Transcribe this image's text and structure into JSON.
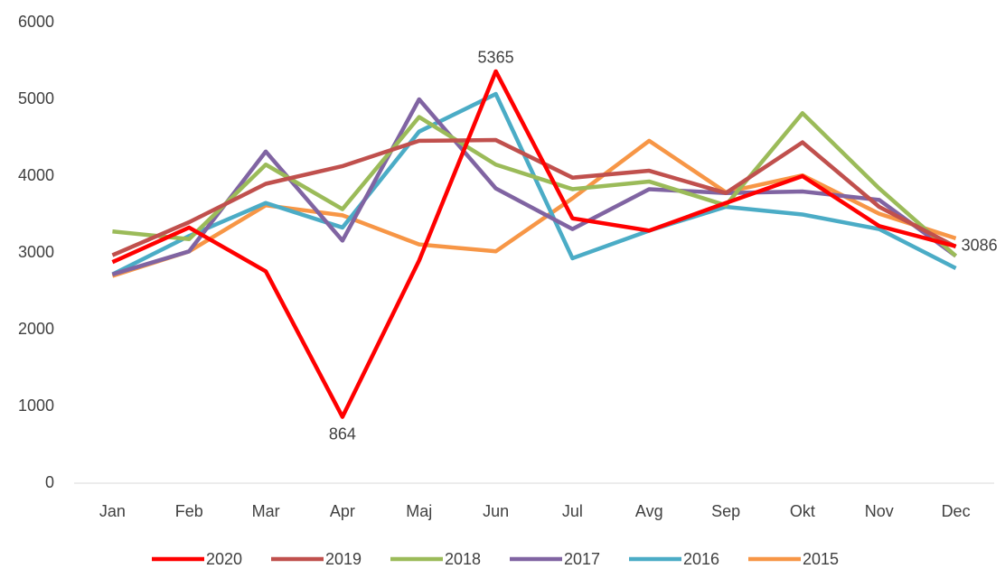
{
  "chart_data": {
    "type": "line",
    "categories": [
      "Jan",
      "Feb",
      "Mar",
      "Apr",
      "Maj",
      "Jun",
      "Jul",
      "Avg",
      "Sep",
      "Okt",
      "Nov",
      "Dec"
    ],
    "series": [
      {
        "name": "2020",
        "color": "#ff0000",
        "values": [
          2880,
          3330,
          2760,
          864,
          2900,
          5365,
          3450,
          3290,
          3650,
          4000,
          3350,
          3086
        ],
        "value_labels": [
          null,
          null,
          null,
          "864",
          null,
          "5365",
          null,
          null,
          null,
          null,
          null,
          "3086"
        ]
      },
      {
        "name": "2019",
        "color": "#c0504d",
        "values": [
          2970,
          3400,
          3900,
          4130,
          4460,
          4470,
          3980,
          4070,
          3780,
          4440,
          3600,
          3080
        ]
      },
      {
        "name": "2018",
        "color": "#9bbb59",
        "values": [
          3280,
          3180,
          4150,
          3570,
          4770,
          4150,
          3830,
          3930,
          3620,
          4820,
          3840,
          2960
        ]
      },
      {
        "name": "2017",
        "color": "#8064a2",
        "values": [
          2720,
          3020,
          4320,
          3160,
          5000,
          3840,
          3310,
          3830,
          3780,
          3800,
          3690,
          2960
        ]
      },
      {
        "name": "2016",
        "color": "#4bacc6",
        "values": [
          2720,
          3220,
          3650,
          3330,
          4580,
          5070,
          2930,
          3290,
          3600,
          3500,
          3310,
          2800
        ]
      },
      {
        "name": "2015",
        "color": "#f79646",
        "values": [
          2700,
          3020,
          3620,
          3490,
          3110,
          3020,
          3710,
          4460,
          3790,
          4010,
          3510,
          3190
        ]
      }
    ],
    "ylim": [
      0,
      6000
    ],
    "yticks": [
      0,
      1000,
      2000,
      3000,
      4000,
      5000,
      6000
    ],
    "grid": false,
    "legend": "bottom"
  }
}
